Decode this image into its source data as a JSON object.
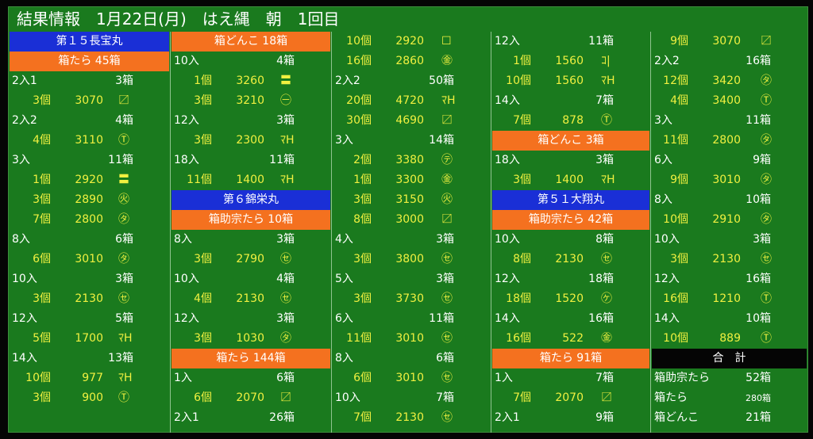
{
  "title": {
    "text": "結果情報　1月22日(月)　はえ縄　朝　1回目"
  },
  "colors": {
    "board": "#1a7a1e",
    "blue_header": "#1a2fd6",
    "orange_header": "#f4711f",
    "white_text": "#ffffff",
    "yellow_text": "#f0f040"
  },
  "columns": [
    {
      "rows": [
        {
          "kind": "header",
          "style": "blue",
          "text": "第１５長宝丸"
        },
        {
          "kind": "header",
          "style": "orange",
          "text": "箱たら 45箱"
        },
        {
          "kind": "entry",
          "label": "2入1",
          "boxes": "3箱"
        },
        {
          "kind": "sale",
          "qty": "3個",
          "price": "3070",
          "mark": "〼"
        },
        {
          "kind": "entry",
          "label": "2入2",
          "boxes": "4箱"
        },
        {
          "kind": "sale",
          "qty": "4個",
          "price": "3110",
          "mark": "Ⓣ"
        },
        {
          "kind": "entry",
          "label": "3入",
          "boxes": "11箱"
        },
        {
          "kind": "sale",
          "qty": "1個",
          "price": "2920",
          "mark": "〓"
        },
        {
          "kind": "sale",
          "qty": "3個",
          "price": "2890",
          "mark": "㊋"
        },
        {
          "kind": "sale",
          "qty": "7個",
          "price": "2800",
          "mark": "㋟"
        },
        {
          "kind": "entry",
          "label": "8入",
          "boxes": "6箱"
        },
        {
          "kind": "sale",
          "qty": "6個",
          "price": "3010",
          "mark": "㋟"
        },
        {
          "kind": "entry",
          "label": "10入",
          "boxes": "3箱"
        },
        {
          "kind": "sale",
          "qty": "3個",
          "price": "2130",
          "mark": "㋝"
        },
        {
          "kind": "entry",
          "label": "12入",
          "boxes": "5箱"
        },
        {
          "kind": "sale",
          "qty": "5個",
          "price": "1700",
          "mark": "ﾏH"
        },
        {
          "kind": "entry",
          "label": "14入",
          "boxes": "13箱"
        },
        {
          "kind": "sale",
          "qty": "10個",
          "price": "977",
          "mark": "ﾏH"
        },
        {
          "kind": "sale",
          "qty": "3個",
          "price": "900",
          "mark": "Ⓣ"
        }
      ]
    },
    {
      "rows": [
        {
          "kind": "header",
          "style": "orange",
          "text": "箱どんこ 18箱"
        },
        {
          "kind": "entry",
          "label": "10入",
          "boxes": "4箱"
        },
        {
          "kind": "sale",
          "qty": "1個",
          "price": "3260",
          "mark": "〓"
        },
        {
          "kind": "sale",
          "qty": "3個",
          "price": "3210",
          "mark": "㊀"
        },
        {
          "kind": "entry",
          "label": "12入",
          "boxes": "3箱"
        },
        {
          "kind": "sale",
          "qty": "3個",
          "price": "2300",
          "mark": "ﾏH"
        },
        {
          "kind": "entry",
          "label": "18入",
          "boxes": "11箱"
        },
        {
          "kind": "sale",
          "qty": "11個",
          "price": "1400",
          "mark": "ﾏH"
        },
        {
          "kind": "header",
          "style": "blue",
          "text": "第６錦栄丸"
        },
        {
          "kind": "header",
          "style": "orange",
          "text": "箱助宗たら 10箱"
        },
        {
          "kind": "entry",
          "label": "8入",
          "boxes": "3箱"
        },
        {
          "kind": "sale",
          "qty": "3個",
          "price": "2790",
          "mark": "㋝"
        },
        {
          "kind": "entry",
          "label": "10入",
          "boxes": "4箱"
        },
        {
          "kind": "sale",
          "qty": "4個",
          "price": "2130",
          "mark": "㋝"
        },
        {
          "kind": "entry",
          "label": "12入",
          "boxes": "3箱"
        },
        {
          "kind": "sale",
          "qty": "3個",
          "price": "1030",
          "mark": "㋟"
        },
        {
          "kind": "header",
          "style": "orange",
          "text": "箱たら 144箱"
        },
        {
          "kind": "entry",
          "label": "1入",
          "boxes": "6箱"
        },
        {
          "kind": "sale",
          "qty": "6個",
          "price": "2070",
          "mark": "〼"
        },
        {
          "kind": "entry",
          "label": "2入1",
          "boxes": "26箱"
        }
      ]
    },
    {
      "rows": [
        {
          "kind": "sale",
          "qty": "10個",
          "price": "2920",
          "mark": "☐"
        },
        {
          "kind": "sale",
          "qty": "16個",
          "price": "2860",
          "mark": "㊎"
        },
        {
          "kind": "entry",
          "label": "2入2",
          "boxes": "50箱"
        },
        {
          "kind": "sale",
          "qty": "20個",
          "price": "4720",
          "mark": "ﾏH"
        },
        {
          "kind": "sale",
          "qty": "30個",
          "price": "4690",
          "mark": "〼"
        },
        {
          "kind": "entry",
          "label": "3入",
          "boxes": "14箱"
        },
        {
          "kind": "sale",
          "qty": "2個",
          "price": "3380",
          "mark": "㋢"
        },
        {
          "kind": "sale",
          "qty": "1個",
          "price": "3300",
          "mark": "㊎"
        },
        {
          "kind": "sale",
          "qty": "3個",
          "price": "3150",
          "mark": "㊋"
        },
        {
          "kind": "sale",
          "qty": "8個",
          "price": "3000",
          "mark": "〼"
        },
        {
          "kind": "entry",
          "label": "4入",
          "boxes": "3箱"
        },
        {
          "kind": "sale",
          "qty": "3個",
          "price": "3800",
          "mark": "㋝"
        },
        {
          "kind": "entry",
          "label": "5入",
          "boxes": "3箱"
        },
        {
          "kind": "sale",
          "qty": "3個",
          "price": "3730",
          "mark": "㋝"
        },
        {
          "kind": "entry",
          "label": "6入",
          "boxes": "11箱"
        },
        {
          "kind": "sale",
          "qty": "11個",
          "price": "3010",
          "mark": "㋝"
        },
        {
          "kind": "entry",
          "label": "8入",
          "boxes": "6箱"
        },
        {
          "kind": "sale",
          "qty": "6個",
          "price": "3010",
          "mark": "㋝"
        },
        {
          "kind": "entry",
          "label": "10入",
          "boxes": "7箱"
        },
        {
          "kind": "sale",
          "qty": "7個",
          "price": "2130",
          "mark": "㋝"
        }
      ]
    },
    {
      "rows": [
        {
          "kind": "entry",
          "label": "12入",
          "boxes": "11箱"
        },
        {
          "kind": "sale",
          "qty": "1個",
          "price": "1560",
          "mark": "ｺ|"
        },
        {
          "kind": "sale",
          "qty": "10個",
          "price": "1560",
          "mark": "ﾏH"
        },
        {
          "kind": "entry",
          "label": "14入",
          "boxes": "7箱"
        },
        {
          "kind": "sale",
          "qty": "7個",
          "price": "878",
          "mark": "Ⓣ"
        },
        {
          "kind": "header",
          "style": "orange",
          "text": "箱どんこ 3箱"
        },
        {
          "kind": "entry",
          "label": "18入",
          "boxes": "3箱"
        },
        {
          "kind": "sale",
          "qty": "3個",
          "price": "1400",
          "mark": "ﾏH"
        },
        {
          "kind": "header",
          "style": "blue",
          "text": "第５１大翔丸"
        },
        {
          "kind": "header",
          "style": "orange",
          "text": "箱助宗たら 42箱"
        },
        {
          "kind": "entry",
          "label": "10入",
          "boxes": "8箱"
        },
        {
          "kind": "sale",
          "qty": "8個",
          "price": "2130",
          "mark": "㋝"
        },
        {
          "kind": "entry",
          "label": "12入",
          "boxes": "18箱"
        },
        {
          "kind": "sale",
          "qty": "18個",
          "price": "1520",
          "mark": "㋘"
        },
        {
          "kind": "entry",
          "label": "14入",
          "boxes": "16箱"
        },
        {
          "kind": "sale",
          "qty": "16個",
          "price": "522",
          "mark": "㊎"
        },
        {
          "kind": "header",
          "style": "orange",
          "text": "箱たら 91箱"
        },
        {
          "kind": "entry",
          "label": "1入",
          "boxes": "7箱"
        },
        {
          "kind": "sale",
          "qty": "7個",
          "price": "2070",
          "mark": "〼"
        },
        {
          "kind": "entry",
          "label": "2入1",
          "boxes": "9箱"
        }
      ]
    },
    {
      "rows": [
        {
          "kind": "sale",
          "qty": "9個",
          "price": "3070",
          "mark": "〼"
        },
        {
          "kind": "entry",
          "label": "2入2",
          "boxes": "16箱"
        },
        {
          "kind": "sale",
          "qty": "12個",
          "price": "3420",
          "mark": "㋟"
        },
        {
          "kind": "sale",
          "qty": "4個",
          "price": "3400",
          "mark": "Ⓣ"
        },
        {
          "kind": "entry",
          "label": "3入",
          "boxes": "11箱"
        },
        {
          "kind": "sale",
          "qty": "11個",
          "price": "2800",
          "mark": "㋟"
        },
        {
          "kind": "entry",
          "label": "6入",
          "boxes": "9箱"
        },
        {
          "kind": "sale",
          "qty": "9個",
          "price": "3010",
          "mark": "㋟"
        },
        {
          "kind": "entry",
          "label": "8入",
          "boxes": "10箱"
        },
        {
          "kind": "sale",
          "qty": "10個",
          "price": "2910",
          "mark": "㋟"
        },
        {
          "kind": "entry",
          "label": "10入",
          "boxes": "3箱"
        },
        {
          "kind": "sale",
          "qty": "3個",
          "price": "2130",
          "mark": "㋝"
        },
        {
          "kind": "entry",
          "label": "12入",
          "boxes": "16箱"
        },
        {
          "kind": "sale",
          "qty": "16個",
          "price": "1210",
          "mark": "Ⓣ"
        },
        {
          "kind": "entry",
          "label": "14入",
          "boxes": "10箱"
        },
        {
          "kind": "sale",
          "qty": "10個",
          "price": "889",
          "mark": "Ⓣ"
        },
        {
          "kind": "header",
          "style": "black",
          "text": "合　計"
        },
        {
          "kind": "sum",
          "label": "箱助宗たら",
          "value": "52箱",
          "small": false
        },
        {
          "kind": "sum",
          "label": "箱たら",
          "value": "280箱",
          "small": true
        },
        {
          "kind": "sum",
          "label": "箱どんこ",
          "value": "21箱",
          "small": false
        }
      ]
    }
  ]
}
